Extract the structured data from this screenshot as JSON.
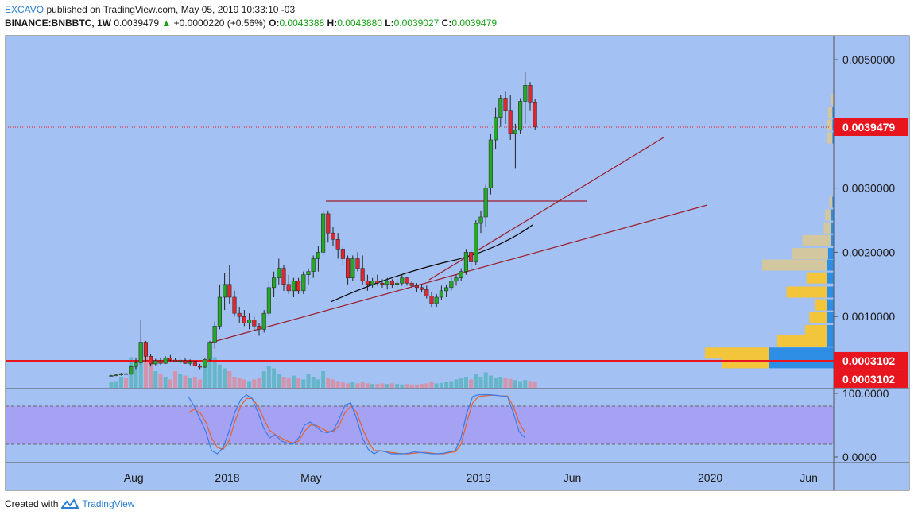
{
  "header": {
    "brand": "EXCAVO",
    "published": "published on TradingView.com, May 05, 2019 10:33:10 -03",
    "symbol": "BINANCE:BNBBTC, 1W",
    "last": "0.0039479",
    "change": "+0.0000220 (+0.56%)",
    "o_label": "O:",
    "o_val": "0.0043388",
    "h_label": "H:",
    "h_val": "0.0043880",
    "l_label": "L:",
    "l_val": "0.0039027",
    "c_label": "C:",
    "c_val": "0.0039479"
  },
  "footer": {
    "created": "Created with",
    "brand": "TradingView"
  },
  "colors": {
    "background": "#a4c1f3",
    "up": "#26a826",
    "down": "#e0262e",
    "price_line": "#e8141e",
    "trend": "#9b1c2b",
    "ma": "#000000",
    "stoch_band": "#a69cf2",
    "stoch_k": "#3b7be8",
    "stoch_d": "#e8602a"
  },
  "chart_data": {
    "type": "candlestick",
    "price_axis": {
      "ylim": [
        0.0,
        0.0057
      ],
      "ticks": [
        {
          "v": 0.005,
          "label": "0.0050000"
        },
        {
          "v": 0.003,
          "label": "0.0030000"
        },
        {
          "v": 0.002,
          "label": "0.0020000"
        },
        {
          "v": 0.001,
          "label": "0.0010000"
        }
      ]
    },
    "x_axis_labels": [
      {
        "i": 1,
        "label": "Aug"
      },
      {
        "i": 20,
        "label": "2018"
      },
      {
        "i": 37,
        "label": "May"
      },
      {
        "i": 71,
        "label": "2019"
      },
      {
        "i": 90,
        "label": "Jun"
      },
      {
        "i": 118,
        "label": "2020"
      },
      {
        "i": 138,
        "label": "Jun"
      }
    ],
    "current_price": {
      "v": 0.0039479,
      "label": "0.0039479"
    },
    "support_level": {
      "v": 0.00031,
      "label": "0.0003102"
    },
    "support_label_2": "0.0003102",
    "candles": [
      [
        8e-05,
        9e-05,
        7e-05,
        8e-05
      ],
      [
        8e-05,
        0.0001,
        7e-05,
        9e-05
      ],
      [
        9e-05,
        0.00012,
        8e-05,
        0.00011
      ],
      [
        0.00011,
        0.00013,
        9e-05,
        0.0001
      ],
      [
        0.0001,
        0.00024,
        0.0001,
        0.00022
      ],
      [
        0.00022,
        0.00036,
        0.00018,
        0.00028
      ],
      [
        0.00028,
        0.00095,
        0.00025,
        0.0006
      ],
      [
        0.0006,
        0.00062,
        0.0003,
        0.00038
      ],
      [
        0.00038,
        0.00042,
        0.00022,
        0.00026
      ],
      [
        0.00026,
        0.00034,
        0.00024,
        0.00031
      ],
      [
        0.00031,
        0.00036,
        0.00025,
        0.00027
      ],
      [
        0.00027,
        0.00038,
        0.00026,
        0.00035
      ],
      [
        0.00035,
        0.0004,
        0.0003,
        0.00032
      ],
      [
        0.00032,
        0.00035,
        0.00029,
        0.0003
      ],
      [
        0.0003,
        0.00033,
        0.00027,
        0.00031
      ],
      [
        0.00031,
        0.00035,
        0.00026,
        0.00027
      ],
      [
        0.00027,
        0.00033,
        0.00024,
        0.0003
      ],
      [
        0.0003,
        0.00031,
        0.00022,
        0.00023
      ],
      [
        0.00023,
        0.00026,
        0.00018,
        0.00021
      ],
      [
        0.00021,
        0.00035,
        0.0002,
        0.00033
      ],
      [
        0.00033,
        0.00062,
        0.00031,
        0.0006
      ],
      [
        0.0006,
        0.00092,
        0.0005,
        0.00085
      ],
      [
        0.00085,
        0.0015,
        0.0008,
        0.0013
      ],
      [
        0.0013,
        0.00168,
        0.0011,
        0.0015
      ],
      [
        0.0015,
        0.0018,
        0.0012,
        0.0013
      ],
      [
        0.0013,
        0.0014,
        0.001,
        0.00105
      ],
      [
        0.00105,
        0.00115,
        0.0009,
        0.001
      ],
      [
        0.001,
        0.0011,
        0.00085,
        0.0009
      ],
      [
        0.0009,
        0.00105,
        0.0008,
        0.00095
      ],
      [
        0.00095,
        0.001,
        0.00078,
        0.00085
      ],
      [
        0.00085,
        0.0009,
        0.0007,
        0.0008
      ],
      [
        0.0008,
        0.0011,
        0.00075,
        0.00105
      ],
      [
        0.00105,
        0.00155,
        0.001,
        0.00145
      ],
      [
        0.00145,
        0.0017,
        0.0013,
        0.0016
      ],
      [
        0.0016,
        0.0019,
        0.0015,
        0.00175
      ],
      [
        0.00175,
        0.0018,
        0.0014,
        0.0015
      ],
      [
        0.0015,
        0.00165,
        0.00135,
        0.0014
      ],
      [
        0.0014,
        0.0016,
        0.0013,
        0.00155
      ],
      [
        0.00155,
        0.0016,
        0.00135,
        0.0014
      ],
      [
        0.0014,
        0.0017,
        0.00135,
        0.00165
      ],
      [
        0.00165,
        0.00175,
        0.0015,
        0.0017
      ],
      [
        0.0017,
        0.00195,
        0.0016,
        0.0019
      ],
      [
        0.0019,
        0.0021,
        0.0017,
        0.002
      ],
      [
        0.002,
        0.00265,
        0.00195,
        0.0026
      ],
      [
        0.0026,
        0.00265,
        0.00215,
        0.0023
      ],
      [
        0.0023,
        0.0024,
        0.0021,
        0.0022
      ],
      [
        0.0022,
        0.0023,
        0.0019,
        0.00205
      ],
      [
        0.00205,
        0.0021,
        0.0018,
        0.0019
      ],
      [
        0.0019,
        0.00195,
        0.0015,
        0.0016
      ],
      [
        0.0016,
        0.00195,
        0.00155,
        0.0019
      ],
      [
        0.0019,
        0.002,
        0.0017,
        0.00175
      ],
      [
        0.00175,
        0.00195,
        0.0015,
        0.00155
      ],
      [
        0.00155,
        0.00165,
        0.0014,
        0.0015
      ],
      [
        0.0015,
        0.0016,
        0.00145,
        0.00155
      ],
      [
        0.00155,
        0.00165,
        0.00148,
        0.00152
      ],
      [
        0.00152,
        0.00158,
        0.00145,
        0.0015
      ],
      [
        0.0015,
        0.0016,
        0.00142,
        0.00155
      ],
      [
        0.00155,
        0.00158,
        0.00145,
        0.0015
      ],
      [
        0.0015,
        0.00158,
        0.00142,
        0.00152
      ],
      [
        0.00152,
        0.00165,
        0.00148,
        0.0016
      ],
      [
        0.0016,
        0.00162,
        0.00148,
        0.00152
      ],
      [
        0.00152,
        0.00155,
        0.00145,
        0.00148
      ],
      [
        0.00148,
        0.00152,
        0.00138,
        0.00145
      ],
      [
        0.00145,
        0.0015,
        0.00138,
        0.00142
      ],
      [
        0.00142,
        0.00148,
        0.00128,
        0.00132
      ],
      [
        0.00132,
        0.00138,
        0.00115,
        0.0012
      ],
      [
        0.0012,
        0.00135,
        0.00115,
        0.0013
      ],
      [
        0.0013,
        0.00148,
        0.00125,
        0.0014
      ],
      [
        0.0014,
        0.0015,
        0.0013,
        0.00145
      ],
      [
        0.00145,
        0.0016,
        0.0014,
        0.00155
      ],
      [
        0.00155,
        0.00165,
        0.00148,
        0.0016
      ],
      [
        0.0016,
        0.00175,
        0.00155,
        0.0017
      ],
      [
        0.0017,
        0.00205,
        0.00165,
        0.002
      ],
      [
        0.002,
        0.00205,
        0.00175,
        0.00185
      ],
      [
        0.00185,
        0.0025,
        0.0018,
        0.00245
      ],
      [
        0.00245,
        0.00265,
        0.0023,
        0.00255
      ],
      [
        0.00255,
        0.00305,
        0.0024,
        0.003
      ],
      [
        0.003,
        0.00385,
        0.0029,
        0.00375
      ],
      [
        0.00375,
        0.00425,
        0.0036,
        0.0041
      ],
      [
        0.0041,
        0.00445,
        0.00395,
        0.0044
      ],
      [
        0.0044,
        0.0045,
        0.004,
        0.0042
      ],
      [
        0.0042,
        0.00445,
        0.00375,
        0.00385
      ],
      [
        0.00385,
        0.004,
        0.0033,
        0.0039
      ],
      [
        0.0039,
        0.0044,
        0.00385,
        0.00435
      ],
      [
        0.00435,
        0.0048,
        0.004,
        0.0046
      ],
      [
        0.0046,
        0.00465,
        0.0042,
        0.00434
      ],
      [
        0.00434,
        0.00439,
        0.0039,
        0.00395
      ]
    ],
    "volume": [
      0.1,
      0.12,
      0.2,
      0.18,
      0.55,
      0.4,
      0.8,
      0.6,
      0.45,
      0.3,
      0.25,
      0.2,
      0.15,
      0.3,
      0.25,
      0.22,
      0.18,
      0.2,
      0.15,
      0.4,
      0.5,
      0.55,
      0.42,
      0.35,
      0.3,
      0.2,
      0.18,
      0.15,
      0.12,
      0.15,
      0.18,
      0.3,
      0.4,
      0.35,
      0.25,
      0.2,
      0.18,
      0.22,
      0.18,
      0.15,
      0.25,
      0.2,
      0.15,
      0.3,
      0.18,
      0.15,
      0.12,
      0.1,
      0.08,
      0.1,
      0.08,
      0.1,
      0.08,
      0.07,
      0.07,
      0.08,
      0.07,
      0.08,
      0.07,
      0.06,
      0.07,
      0.06,
      0.06,
      0.07,
      0.08,
      0.1,
      0.08,
      0.09,
      0.1,
      0.12,
      0.15,
      0.18,
      0.2,
      0.15,
      0.25,
      0.2,
      0.28,
      0.22,
      0.18,
      0.2,
      0.18,
      0.16,
      0.14,
      0.12,
      0.14,
      0.12,
      0.1
    ],
    "volume_profile": [
      {
        "p": 0.00028,
        "blue": 0.45,
        "yellow": 0.33
      },
      {
        "p": 0.00043,
        "blue": 0.45,
        "yellow": 0.45
      },
      {
        "p": 0.00062,
        "blue": 0.05,
        "yellow": 0.35
      },
      {
        "p": 0.00078,
        "blue": 0.05,
        "yellow": 0.15
      },
      {
        "p": 0.00098,
        "blue": 0.05,
        "yellow": 0.12
      },
      {
        "p": 0.00118,
        "blue": 0.05,
        "yellow": 0.08
      },
      {
        "p": 0.00138,
        "blue": 0.05,
        "yellow": 0.28
      },
      {
        "p": 0.0016,
        "blue": 0.05,
        "yellow": 0.14
      },
      {
        "p": 0.0018,
        "blue": 0.05,
        "yellow": 0.0,
        "beige": 0.45
      },
      {
        "p": 0.00198,
        "blue": 0.04,
        "yellow": 0.0,
        "beige": 0.25
      },
      {
        "p": 0.00218,
        "blue": 0.02,
        "yellow": 0.0,
        "beige": 0.2
      },
      {
        "p": 0.00238,
        "blue": 0.02,
        "yellow": 0.0,
        "beige": 0.05
      },
      {
        "p": 0.00258,
        "blue": 0.02,
        "yellow": 0.0,
        "beige": 0.04
      },
      {
        "p": 0.00278,
        "blue": 0.01,
        "yellow": 0.0,
        "beige": 0.02
      },
      {
        "p": 0.00378,
        "blue": 0.01,
        "yellow": 0.0,
        "beige": 0.04
      },
      {
        "p": 0.00398,
        "blue": 0.01,
        "yellow": 0.0,
        "beige": 0.04
      },
      {
        "p": 0.00418,
        "blue": 0.01,
        "yellow": 0.0,
        "beige": 0.03
      },
      {
        "p": 0.00438,
        "blue": 0.0,
        "yellow": 0.0,
        "beige": 0.02
      }
    ],
    "stoch": {
      "ylim": [
        0,
        100
      ],
      "ticks": [
        {
          "v": 100,
          "label": "100.0000"
        },
        {
          "v": 0,
          "label": "0.0000"
        }
      ],
      "bands": [
        80,
        20
      ],
      "k": [
        95,
        80,
        60,
        40,
        10,
        5,
        15,
        40,
        70,
        90,
        98,
        92,
        70,
        45,
        30,
        35,
        25,
        22,
        20,
        30,
        50,
        55,
        48,
        40,
        38,
        42,
        60,
        82,
        85,
        60,
        30,
        12,
        5,
        10,
        8,
        5,
        5,
        5,
        6,
        8,
        7,
        6,
        5,
        5,
        6,
        8,
        10,
        30,
        70,
        95,
        98,
        98,
        98,
        97,
        96,
        95,
        70,
        40,
        30
      ],
      "d": [
        70,
        75,
        70,
        55,
        30,
        15,
        12,
        25,
        55,
        80,
        92,
        92,
        80,
        60,
        42,
        35,
        30,
        25,
        22,
        25,
        40,
        50,
        50,
        45,
        40,
        40,
        50,
        70,
        80,
        70,
        45,
        25,
        10,
        10,
        9,
        7,
        6,
        5,
        5,
        6,
        7,
        7,
        6,
        5,
        5,
        7,
        8,
        20,
        55,
        85,
        95,
        96,
        97,
        97,
        96,
        96,
        80,
        55,
        38
      ]
    }
  }
}
